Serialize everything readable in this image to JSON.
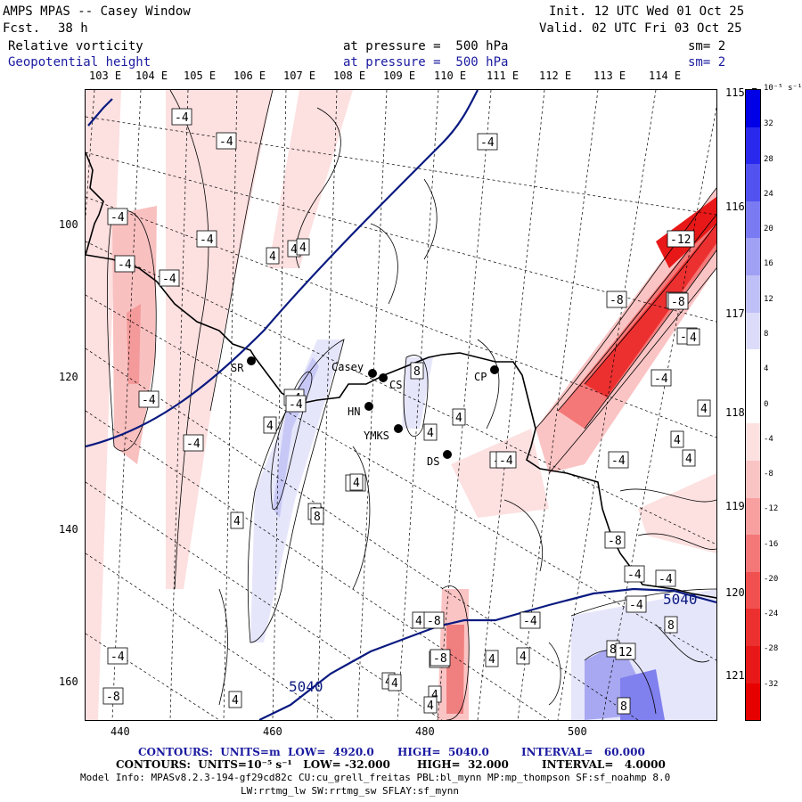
{
  "header": {
    "title": "AMPS MPAS -- Casey Window",
    "fcst_label": "Fcst.",
    "fcst_value": "38 h",
    "init": "Init. 12 UTC Wed 01 Oct 25",
    "valid": "Valid. 02 UTC Fri 03 Oct 25",
    "field1": "Relative vorticity",
    "field1_level": "at pressure =  500 hPa",
    "field1_sm": "sm= 2",
    "field2": "Geopotential height",
    "field2_level": "at pressure =  500 hPa",
    "field2_sm": "sm= 2"
  },
  "axes": {
    "top_lon": [
      "103 E",
      "104 E",
      "105 E",
      "106 E",
      "107 E",
      "108 E",
      "109 E",
      "110 E",
      "111 E",
      "112 E",
      "113 E",
      "114 E"
    ],
    "right_lon": [
      "115 E",
      "116 E",
      "117 E",
      "118 E",
      "119 E",
      "120 E",
      "121 E"
    ],
    "x_ticks": [
      "440",
      "460",
      "480",
      "500"
    ],
    "y_ticks": [
      "100",
      "120",
      "140",
      "160"
    ]
  },
  "stations": [
    {
      "code": "SR"
    },
    {
      "code": "Casey"
    },
    {
      "code": "CS"
    },
    {
      "code": "CP"
    },
    {
      "code": "HN"
    },
    {
      "code": "YMKS"
    },
    {
      "code": "DS"
    }
  ],
  "contour_labels": {
    "vorticity": [
      "-4",
      "-4",
      "4",
      "-4",
      "-4",
      "4",
      "-4",
      "-4",
      "-4",
      "-4",
      "-4",
      "4",
      "4",
      "-4",
      "8",
      "8",
      "-4",
      "-4",
      "4",
      "-4",
      "-8",
      "-8",
      "-8",
      "-12",
      "-8",
      "-4",
      "4",
      "-4",
      "4",
      "4",
      "4",
      "8",
      "4",
      "4",
      "-8",
      "-4",
      "4",
      "-4",
      "-4",
      "8",
      "12",
      "8",
      "-4",
      "-8",
      "-4",
      "4",
      "-8",
      "-4",
      "4",
      "4",
      "-8",
      "4",
      "-4",
      "8",
      "4",
      "4",
      "4",
      "-4",
      "4"
    ],
    "height": [
      "5040",
      "5040"
    ]
  },
  "colorbar": {
    "unit": "10⁻⁵ s⁻¹",
    "labels": [
      "32",
      "28",
      "24",
      "20",
      "16",
      "12",
      "8",
      "4",
      "0",
      "-4",
      "-8",
      "-12",
      "-16",
      "-20",
      "-24",
      "-28",
      "-32"
    ],
    "colors": [
      "#0000e6",
      "#2929ee",
      "#5252f0",
      "#7a7af2",
      "#a0a0f4",
      "#c0c0f8",
      "#dcdcfa",
      "#ffffff",
      "#ffffff",
      "#fde0e0",
      "#fbc4c4",
      "#f8a0a0",
      "#f47878",
      "#f05050",
      "#ec3030",
      "#e81818",
      "#e60000"
    ]
  },
  "footer": {
    "line1_a": "CONTOURS:  UNITS=m  LOW=  4920.0",
    "line1_b": "HIGH=  5040.0",
    "line1_c": "INTERVAL=   60.000",
    "line2_a": "CONTOURS:  UNITS=10⁻⁵ s⁻¹   LOW= -32.000",
    "line2_b": "HIGH=  32.000",
    "line2_c": "INTERVAL=   4.0000",
    "line3": "Model Info: MPASv8.2.3-194-gf29cd82c CU:cu_grell_freitas PBL:bl_mynn MP:mp_thompson SF:sf_noahmp 8.0",
    "line4": "LW:rrtmg_lw SW:rrtmg_sw SFLAY:sf_mynn"
  }
}
